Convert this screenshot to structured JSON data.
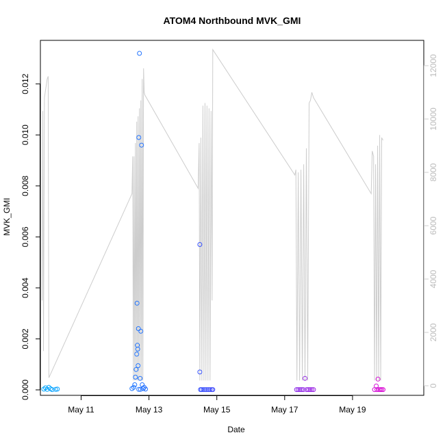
{
  "chart_data": {
    "type": "scatter",
    "title": "ATOM4 Northbound MVK_GMI",
    "xlabel": "Date",
    "ylabel": "MVK_GMI",
    "x_unit": "days (May, day of month)",
    "xlim": [
      9.8,
      21.1
    ],
    "ylim": [
      0,
      0.0132
    ],
    "y_ticks": [
      0.0,
      0.002,
      0.004,
      0.006,
      0.008,
      0.01,
      0.012
    ],
    "y_tick_labels": [
      "0.000",
      "0.002",
      "0.004",
      "0.006",
      "0.008",
      "0.010",
      "0.012"
    ],
    "x_ticks": [
      11,
      13,
      15,
      17,
      19
    ],
    "x_tick_labels": [
      "May 11",
      "May 13",
      "May 15",
      "May 17",
      "May 19"
    ],
    "y2_ticks": [
      0,
      2000,
      4000,
      6000,
      8000,
      10000,
      12000
    ],
    "y2_tick_labels": [
      "0",
      "2000",
      "4000",
      "6000",
      "8000",
      "10000",
      "12000"
    ],
    "y2lim": [
      0,
      12500
    ],
    "grid": false,
    "series": [
      {
        "role": "measurements",
        "color_scale": [
          "#00aaff",
          "#ff00cc"
        ],
        "points": [
          {
            "x": 9.9,
            "y": 3e-05
          },
          {
            "x": 9.95,
            "y": 8e-05
          },
          {
            "x": 10.0,
            "y": 2e-05
          },
          {
            "x": 10.05,
            "y": 0.0001
          },
          {
            "x": 10.1,
            "y": 4e-05
          },
          {
            "x": 10.15,
            "y": 1e-05
          },
          {
            "x": 10.25,
            "y": 2e-05
          },
          {
            "x": 10.3,
            "y": 3e-05
          },
          {
            "x": 12.5,
            "y": 5e-05
          },
          {
            "x": 12.55,
            "y": 0.0001
          },
          {
            "x": 12.58,
            "y": 0.0002
          },
          {
            "x": 12.6,
            "y": 0.0005
          },
          {
            "x": 12.62,
            "y": 0.0008
          },
          {
            "x": 12.64,
            "y": 0.0014
          },
          {
            "x": 12.65,
            "y": 0.0034
          },
          {
            "x": 12.66,
            "y": 0.00175
          },
          {
            "x": 12.67,
            "y": 0.0016
          },
          {
            "x": 12.68,
            "y": 0.00095
          },
          {
            "x": 12.69,
            "y": 0.0024
          },
          {
            "x": 12.7,
            "y": 0.0099
          },
          {
            "x": 12.72,
            "y": 0.0132
          },
          {
            "x": 12.74,
            "y": 0.00045
          },
          {
            "x": 12.76,
            "y": 0.0023
          },
          {
            "x": 12.78,
            "y": 0.0096
          },
          {
            "x": 12.8,
            "y": 0.0002
          },
          {
            "x": 12.83,
            "y": 5e-05
          },
          {
            "x": 12.86,
            "y": 0.0001
          },
          {
            "x": 12.9,
            "y": 3e-05
          },
          {
            "x": 12.7,
            "y": 2e-05
          },
          {
            "x": 12.75,
            "y": 2e-05
          },
          {
            "x": 14.5,
            "y": 0.0057
          },
          {
            "x": 14.5,
            "y": 0.0007
          },
          {
            "x": 14.55,
            "y": 1e-05
          },
          {
            "x": 14.6,
            "y": 1e-05
          },
          {
            "x": 14.65,
            "y": 1e-05
          },
          {
            "x": 14.7,
            "y": 1e-05
          },
          {
            "x": 14.75,
            "y": 1e-05
          },
          {
            "x": 14.8,
            "y": 1e-05
          },
          {
            "x": 14.85,
            "y": 1e-05
          },
          {
            "x": 14.88,
            "y": 1e-05
          },
          {
            "x": 14.52,
            "y": 1e-05
          },
          {
            "x": 17.35,
            "y": 1e-05
          },
          {
            "x": 17.4,
            "y": 1e-05
          },
          {
            "x": 17.45,
            "y": 1e-05
          },
          {
            "x": 17.5,
            "y": 1e-05
          },
          {
            "x": 17.55,
            "y": 1e-05
          },
          {
            "x": 17.6,
            "y": 0.00045
          },
          {
            "x": 17.65,
            "y": 1e-05
          },
          {
            "x": 17.7,
            "y": 1e-05
          },
          {
            "x": 17.75,
            "y": 1e-05
          },
          {
            "x": 17.8,
            "y": 1e-05
          },
          {
            "x": 17.85,
            "y": 1e-05
          },
          {
            "x": 19.65,
            "y": 1e-05
          },
          {
            "x": 19.7,
            "y": 0.00015
          },
          {
            "x": 19.72,
            "y": 1e-05
          },
          {
            "x": 19.75,
            "y": 0.00042
          },
          {
            "x": 19.78,
            "y": 1e-05
          },
          {
            "x": 19.82,
            "y": 1e-05
          },
          {
            "x": 19.86,
            "y": 1e-05
          },
          {
            "x": 19.9,
            "y": 1e-05
          }
        ]
      },
      {
        "role": "secondary-axis line",
        "color": "#cccccc",
        "points": [
          {
            "x": 9.85,
            "y2": 3200
          },
          {
            "x": 9.87,
            "y2": 10300
          },
          {
            "x": 9.89,
            "y2": 1300
          },
          {
            "x": 9.92,
            "y2": 10800
          },
          {
            "x": 10.0,
            "y2": 11500
          },
          {
            "x": 10.03,
            "y2": 11600
          },
          {
            "x": 10.05,
            "y2": 300
          },
          {
            "x": 12.5,
            "y2": 7200
          },
          {
            "x": 12.52,
            "y2": 8600
          },
          {
            "x": 12.54,
            "y2": 200
          },
          {
            "x": 12.56,
            "y2": 8600
          },
          {
            "x": 12.58,
            "y2": 200
          },
          {
            "x": 12.6,
            "y2": 9100
          },
          {
            "x": 12.62,
            "y2": 200
          },
          {
            "x": 12.64,
            "y2": 9900
          },
          {
            "x": 12.66,
            "y2": 200
          },
          {
            "x": 12.68,
            "y2": 10100
          },
          {
            "x": 12.7,
            "y2": 200
          },
          {
            "x": 12.72,
            "y2": 10400
          },
          {
            "x": 12.74,
            "y2": 200
          },
          {
            "x": 12.76,
            "y2": 10700
          },
          {
            "x": 12.78,
            "y2": 200
          },
          {
            "x": 12.8,
            "y2": 11500
          },
          {
            "x": 12.82,
            "y2": 200
          },
          {
            "x": 12.84,
            "y2": 11900
          },
          {
            "x": 12.86,
            "y2": 11000
          },
          {
            "x": 12.88,
            "y2": 10900
          },
          {
            "x": 14.45,
            "y2": 7400
          },
          {
            "x": 14.48,
            "y2": 9100
          },
          {
            "x": 14.5,
            "y2": 200
          },
          {
            "x": 14.53,
            "y2": 9300
          },
          {
            "x": 14.56,
            "y2": 200
          },
          {
            "x": 14.59,
            "y2": 10500
          },
          {
            "x": 14.62,
            "y2": 200
          },
          {
            "x": 14.65,
            "y2": 10600
          },
          {
            "x": 14.68,
            "y2": 200
          },
          {
            "x": 14.71,
            "y2": 10500
          },
          {
            "x": 14.74,
            "y2": 200
          },
          {
            "x": 14.77,
            "y2": 10400
          },
          {
            "x": 14.8,
            "y2": 200
          },
          {
            "x": 14.83,
            "y2": 10300
          },
          {
            "x": 14.86,
            "y2": 3200
          },
          {
            "x": 14.88,
            "y2": 12600
          },
          {
            "x": 17.3,
            "y2": 7900
          },
          {
            "x": 17.33,
            "y2": 8100
          },
          {
            "x": 17.36,
            "y2": 200
          },
          {
            "x": 17.4,
            "y2": 8000
          },
          {
            "x": 17.44,
            "y2": 200
          },
          {
            "x": 17.48,
            "y2": 8100
          },
          {
            "x": 17.52,
            "y2": 200
          },
          {
            "x": 17.56,
            "y2": 8300
          },
          {
            "x": 17.6,
            "y2": 200
          },
          {
            "x": 17.64,
            "y2": 8900
          },
          {
            "x": 17.68,
            "y2": 200
          },
          {
            "x": 17.72,
            "y2": 10600
          },
          {
            "x": 17.76,
            "y2": 10700
          },
          {
            "x": 17.8,
            "y2": 11000
          },
          {
            "x": 17.85,
            "y2": 10800
          },
          {
            "x": 19.55,
            "y2": 7200
          },
          {
            "x": 19.58,
            "y2": 8800
          },
          {
            "x": 19.62,
            "y2": 8600
          },
          {
            "x": 19.65,
            "y2": 200
          },
          {
            "x": 19.68,
            "y2": 8300
          },
          {
            "x": 19.71,
            "y2": 200
          },
          {
            "x": 19.74,
            "y2": 9000
          },
          {
            "x": 19.77,
            "y2": 200
          },
          {
            "x": 19.8,
            "y2": 9400
          },
          {
            "x": 19.83,
            "y2": 200
          },
          {
            "x": 19.86,
            "y2": 9300
          },
          {
            "x": 19.9,
            "y2": 9200
          }
        ]
      }
    ]
  }
}
